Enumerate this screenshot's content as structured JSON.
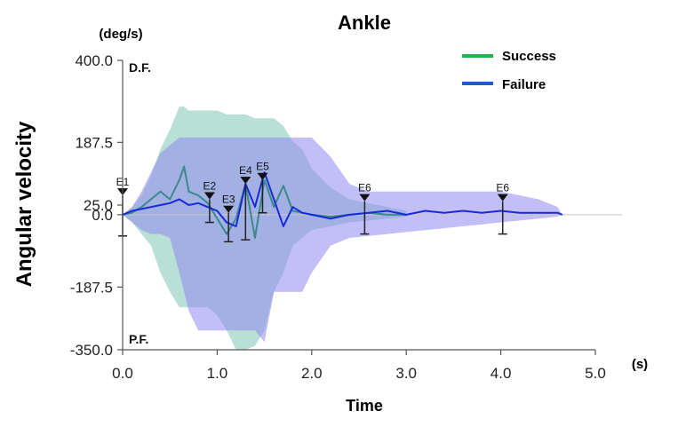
{
  "chart_data": {
    "type": "line",
    "title": "Ankle",
    "xlabel": "Time",
    "x_unit": "(s)",
    "ylabel": "Angular velocity",
    "y_unit": "(deg/s)",
    "xlim": [
      0,
      5
    ],
    "ylim": [
      -350,
      400
    ],
    "x_ticks": [
      "0.0",
      "1.0",
      "2.0",
      "3.0",
      "4.0",
      "5.0"
    ],
    "y_ticks": [
      "400.0",
      "187.5",
      "25.0",
      "0.0",
      "-187.5",
      "-350.0"
    ],
    "y_tick_values": [
      400,
      187.5,
      25,
      0,
      -187.5,
      -350
    ],
    "region_labels": {
      "top": "D.F.",
      "bottom": "P.F."
    },
    "legend_position": "top-right",
    "colors": {
      "success_line": "#3a8a8a",
      "success_band": "#a8d8cc",
      "failure_line": "#1a2ad6",
      "failure_band": "#8f88f0",
      "legend_success": "#27b04a",
      "legend_failure": "#1e5fc4"
    },
    "series": [
      {
        "name": "Success",
        "x": [
          0,
          0.1,
          0.2,
          0.3,
          0.4,
          0.5,
          0.6,
          0.65,
          0.7,
          0.8,
          0.9,
          1.0,
          1.1,
          1.2,
          1.3,
          1.4,
          1.5,
          1.6,
          1.7,
          1.8,
          1.9,
          2.0,
          2.2,
          2.4,
          2.6,
          2.8,
          3.0
        ],
        "y": [
          0,
          5,
          20,
          40,
          60,
          40,
          90,
          125,
          60,
          50,
          30,
          -10,
          -50,
          -10,
          80,
          -60,
          90,
          20,
          75,
          10,
          5,
          0,
          -5,
          0,
          5,
          0,
          0
        ],
        "upper": [
          0,
          20,
          50,
          100,
          170,
          220,
          280,
          280,
          270,
          270,
          270,
          270,
          260,
          260,
          260,
          250,
          250,
          250,
          230,
          190,
          170,
          120,
          70,
          40,
          30,
          20,
          10
        ],
        "lower": [
          0,
          -20,
          -50,
          -80,
          -150,
          -200,
          -240,
          -240,
          -240,
          -240,
          -240,
          -260,
          -300,
          -350,
          -350,
          -340,
          -300,
          -200,
          -150,
          -80,
          -60,
          -40,
          -30,
          -20,
          -15,
          -10,
          -5
        ]
      },
      {
        "name": "Failure",
        "x": [
          0,
          0.1,
          0.2,
          0.3,
          0.4,
          0.5,
          0.6,
          0.7,
          0.8,
          0.9,
          1.0,
          1.1,
          1.2,
          1.3,
          1.4,
          1.5,
          1.6,
          1.7,
          1.8,
          1.9,
          2.0,
          2.2,
          2.4,
          2.6,
          2.8,
          3.0,
          3.2,
          3.4,
          3.6,
          3.8,
          4.0,
          4.2,
          4.4,
          4.6,
          4.65
        ],
        "y": [
          0,
          10,
          15,
          20,
          25,
          30,
          40,
          25,
          30,
          20,
          10,
          -20,
          -30,
          80,
          20,
          110,
          40,
          -30,
          20,
          5,
          0,
          -10,
          0,
          5,
          10,
          0,
          10,
          5,
          10,
          5,
          10,
          5,
          5,
          5,
          0
        ],
        "upper": [
          0,
          20,
          60,
          110,
          160,
          180,
          200,
          200,
          200,
          200,
          200,
          200,
          200,
          200,
          200,
          200,
          200,
          200,
          200,
          200,
          200,
          150,
          80,
          60,
          60,
          60,
          60,
          60,
          60,
          60,
          60,
          50,
          40,
          20,
          0
        ],
        "lower": [
          0,
          -20,
          -40,
          -50,
          -50,
          -60,
          -150,
          -250,
          -300,
          -300,
          -300,
          -300,
          -300,
          -300,
          -300,
          -330,
          -200,
          -200,
          -200,
          -200,
          -150,
          -80,
          -60,
          -55,
          -50,
          -45,
          -40,
          -35,
          -30,
          -25,
          -20,
          -15,
          -10,
          -5,
          0
        ]
      }
    ],
    "events": [
      {
        "label": "E1",
        "x": 0.0,
        "y_top": 50,
        "y_low": -55
      },
      {
        "label": "E2",
        "x": 0.92,
        "y_top": 40,
        "y_low": -20
      },
      {
        "label": "E3",
        "x": 1.12,
        "y_top": 5,
        "y_low": -70
      },
      {
        "label": "E4",
        "x": 1.3,
        "y_top": 80,
        "y_low": -65
      },
      {
        "label": "E5",
        "x": 1.48,
        "y_top": 90,
        "y_low": 5
      },
      {
        "label": "E6",
        "x": 2.56,
        "y_top": 35,
        "y_low": -50
      },
      {
        "label": "E6",
        "x": 4.02,
        "y_top": 35,
        "y_low": -50
      }
    ]
  }
}
